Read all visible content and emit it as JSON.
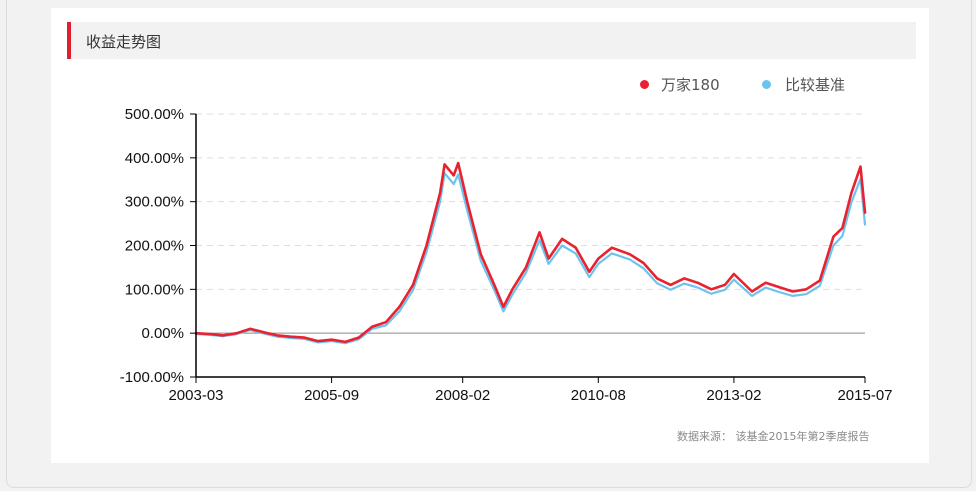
{
  "panel": {
    "title": "收益走势图",
    "source_note": "数据来源： 该基金2015年第2季度报告"
  },
  "legend": [
    {
      "label": "万家180",
      "color": "#e8222e"
    },
    {
      "label": "比较基准",
      "color": "#6ec3ee"
    }
  ],
  "chart_data": {
    "type": "line",
    "title": "收益走势图",
    "xlabel": "",
    "ylabel": "",
    "x_ticks": [
      "2003-03",
      "2005-09",
      "2008-02",
      "2010-08",
      "2013-02",
      "2015-07"
    ],
    "y_ticks": [
      "500.00%",
      "400.00%",
      "300.00%",
      "200.00%",
      "100.00%",
      "0.00%",
      "-100.00%"
    ],
    "ylim": [
      -100,
      500
    ],
    "xlim": [
      "2003-03",
      "2015-07"
    ],
    "grid": "horizontal dashed",
    "legend_position": "top-right",
    "series": [
      {
        "name": "万家180",
        "color": "#e8222e",
        "points": [
          [
            "2003-03",
            0
          ],
          [
            "2003-06",
            -2
          ],
          [
            "2003-09",
            -5
          ],
          [
            "2003-12",
            0
          ],
          [
            "2004-03",
            10
          ],
          [
            "2004-06",
            2
          ],
          [
            "2004-09",
            -5
          ],
          [
            "2004-12",
            -8
          ],
          [
            "2005-03",
            -10
          ],
          [
            "2005-06",
            -18
          ],
          [
            "2005-09",
            -15
          ],
          [
            "2005-12",
            -20
          ],
          [
            "2006-03",
            -10
          ],
          [
            "2006-06",
            15
          ],
          [
            "2006-09",
            25
          ],
          [
            "2006-12",
            60
          ],
          [
            "2007-03",
            110
          ],
          [
            "2007-06",
            200
          ],
          [
            "2007-09",
            320
          ],
          [
            "2007-10",
            385
          ],
          [
            "2007-12",
            360
          ],
          [
            "2008-01",
            388
          ],
          [
            "2008-03",
            300
          ],
          [
            "2008-06",
            180
          ],
          [
            "2008-09",
            110
          ],
          [
            "2008-11",
            60
          ],
          [
            "2009-01",
            100
          ],
          [
            "2009-04",
            150
          ],
          [
            "2009-07",
            230
          ],
          [
            "2009-09",
            170
          ],
          [
            "2009-12",
            215
          ],
          [
            "2010-03",
            195
          ],
          [
            "2010-06",
            140
          ],
          [
            "2010-08",
            170
          ],
          [
            "2010-11",
            195
          ],
          [
            "2011-03",
            180
          ],
          [
            "2011-06",
            160
          ],
          [
            "2011-09",
            125
          ],
          [
            "2011-12",
            110
          ],
          [
            "2012-03",
            125
          ],
          [
            "2012-06",
            115
          ],
          [
            "2012-09",
            100
          ],
          [
            "2012-12",
            110
          ],
          [
            "2013-02",
            135
          ],
          [
            "2013-06",
            95
          ],
          [
            "2013-09",
            115
          ],
          [
            "2013-12",
            105
          ],
          [
            "2014-03",
            95
          ],
          [
            "2014-06",
            100
          ],
          [
            "2014-09",
            120
          ],
          [
            "2014-12",
            220
          ],
          [
            "2015-02",
            240
          ],
          [
            "2015-04",
            320
          ],
          [
            "2015-06",
            380
          ],
          [
            "2015-07",
            275
          ]
        ]
      },
      {
        "name": "比较基准",
        "color": "#6ec3ee",
        "points": [
          [
            "2003-03",
            -2
          ],
          [
            "2003-06",
            -4
          ],
          [
            "2003-09",
            -7
          ],
          [
            "2003-12",
            -2
          ],
          [
            "2004-03",
            7
          ],
          [
            "2004-06",
            -1
          ],
          [
            "2004-09",
            -8
          ],
          [
            "2004-12",
            -11
          ],
          [
            "2005-03",
            -13
          ],
          [
            "2005-06",
            -21
          ],
          [
            "2005-09",
            -18
          ],
          [
            "2005-12",
            -23
          ],
          [
            "2006-03",
            -14
          ],
          [
            "2006-06",
            10
          ],
          [
            "2006-09",
            18
          ],
          [
            "2006-12",
            50
          ],
          [
            "2007-03",
            98
          ],
          [
            "2007-06",
            185
          ],
          [
            "2007-09",
            300
          ],
          [
            "2007-10",
            365
          ],
          [
            "2007-12",
            340
          ],
          [
            "2008-01",
            362
          ],
          [
            "2008-03",
            280
          ],
          [
            "2008-06",
            165
          ],
          [
            "2008-09",
            98
          ],
          [
            "2008-11",
            50
          ],
          [
            "2009-01",
            88
          ],
          [
            "2009-04",
            138
          ],
          [
            "2009-07",
            212
          ],
          [
            "2009-09",
            158
          ],
          [
            "2009-12",
            200
          ],
          [
            "2010-03",
            182
          ],
          [
            "2010-06",
            128
          ],
          [
            "2010-08",
            158
          ],
          [
            "2010-11",
            182
          ],
          [
            "2011-03",
            168
          ],
          [
            "2011-06",
            148
          ],
          [
            "2011-09",
            114
          ],
          [
            "2011-12",
            99
          ],
          [
            "2012-03",
            113
          ],
          [
            "2012-06",
            104
          ],
          [
            "2012-09",
            90
          ],
          [
            "2012-12",
            99
          ],
          [
            "2013-02",
            122
          ],
          [
            "2013-06",
            85
          ],
          [
            "2013-09",
            104
          ],
          [
            "2013-12",
            94
          ],
          [
            "2014-03",
            85
          ],
          [
            "2014-06",
            89
          ],
          [
            "2014-09",
            108
          ],
          [
            "2014-12",
            200
          ],
          [
            "2015-02",
            222
          ],
          [
            "2015-04",
            298
          ],
          [
            "2015-06",
            352
          ],
          [
            "2015-07",
            248
          ]
        ]
      }
    ]
  }
}
